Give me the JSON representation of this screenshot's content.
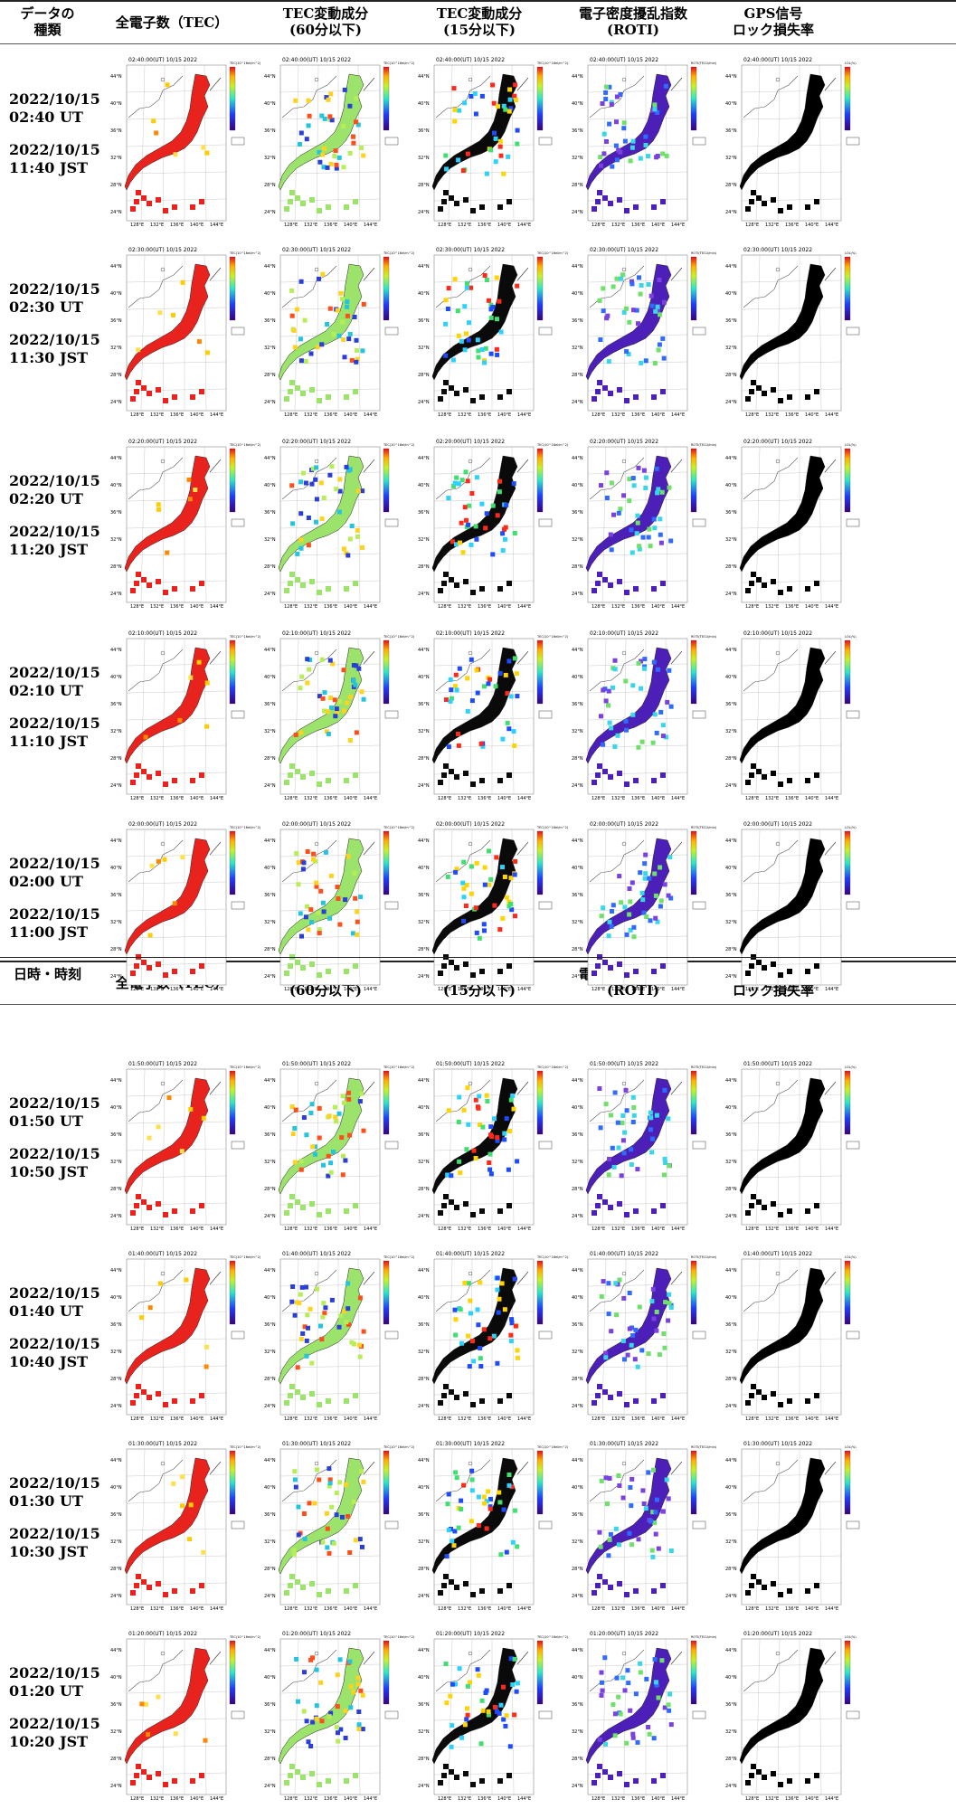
{
  "headers_top": {
    "first": "データの\n種類",
    "tec": "全電子数（TEC）",
    "tec60": "TEC変動成分\n(60分以下)",
    "tec15": "TEC変動成分\n(15分以下)",
    "roti": "電子密度擾乱指数\n(ROTI)",
    "lol": "GPS信号\nロック損失率"
  },
  "headers_bottom": {
    "first": "日時・時刻",
    "tec": "全電子数（TEC）",
    "tec60": "TEC変動成分\n(60分以下)",
    "tec15": "TEC変動成分\n(15分以下)",
    "roti": "電子密度擾乱指数\n(ROTI)",
    "lol": "GPS信号\nロック損失率"
  },
  "rows": [
    {
      "ut": "2022/10/15\n02:40 UT",
      "jst": "2022/10/15\n11:40 JST",
      "title": "02:40:00(UT) 10/15 2022"
    },
    {
      "ut": "2022/10/15\n02:30 UT",
      "jst": "2022/10/15\n11:30 JST",
      "title": "02:30:00(UT) 10/15 2022"
    },
    {
      "ut": "2022/10/15\n02:20 UT",
      "jst": "2022/10/15\n11:20 JST",
      "title": "02:20:00(UT) 10/15 2022"
    },
    {
      "ut": "2022/10/15\n02:10 UT",
      "jst": "2022/10/15\n11:10 JST",
      "title": "02:10:00(UT) 10/15 2022"
    },
    {
      "ut": "2022/10/15\n02:00 UT",
      "jst": "2022/10/15\n11:00 JST",
      "title": "02:00:00(UT) 10/15 2022"
    },
    {
      "ut": "2022/10/15\n01:50 UT",
      "jst": "2022/10/15\n10:50 JST",
      "title": "01:50:00(UT) 10/15 2022"
    },
    {
      "ut": "2022/10/15\n01:40 UT",
      "jst": "2022/10/15\n10:40 JST",
      "title": "01:40:00(UT) 10/15 2022"
    },
    {
      "ut": "2022/10/15\n01:30 UT",
      "jst": "2022/10/15\n10:30 JST",
      "title": "01:30:00(UT) 10/15 2022"
    },
    {
      "ut": "2022/10/15\n01:20 UT",
      "jst": "2022/10/15\n10:20 JST",
      "title": "01:20:00(UT) 10/15 2022"
    }
  ],
  "lat_ticks": [
    "44°N",
    "40°N",
    "36°N",
    "32°N",
    "28°N",
    "24°N"
  ],
  "lon_ticks": [
    "128°E",
    "132°E",
    "136°E",
    "140°E",
    "144°E"
  ],
  "colorbar_labels": {
    "tec": "TEC(10^16el/m^2)",
    "tec60": "TEC(10^16el/m^2)",
    "tec15": "TEC(10^16el/m^2)",
    "roti": "ROTI(TECU/min)",
    "lol": "LOL(%)"
  },
  "colors": {
    "tec_fill": "#e8231e",
    "tec60_fill": "#9be36a",
    "tec15_fill": "#0a0a0a",
    "roti_fill": "#4b1fb8",
    "lol_fill": "#000000",
    "rule": "#222222"
  }
}
